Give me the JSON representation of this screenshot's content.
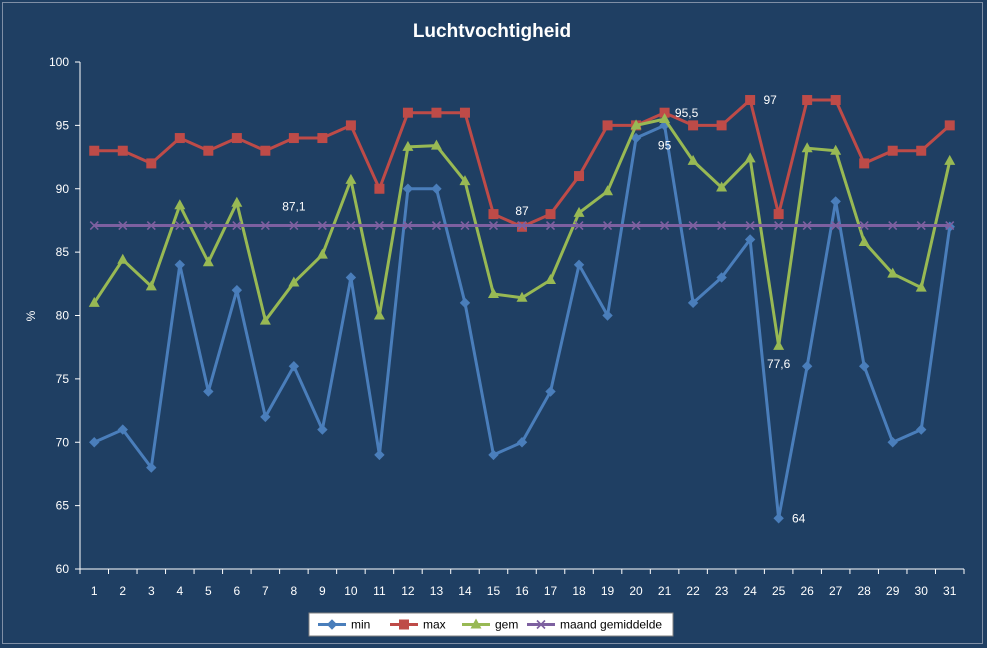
{
  "chart_data": {
    "type": "line",
    "title": "Luchtvochtigheid",
    "ylabel": "%",
    "xlabel": "",
    "ylim": [
      60,
      100
    ],
    "yticks": [
      60,
      65,
      70,
      75,
      80,
      85,
      90,
      95,
      100
    ],
    "categories": [
      "1",
      "2",
      "3",
      "4",
      "5",
      "6",
      "7",
      "8",
      "9",
      "10",
      "11",
      "12",
      "13",
      "14",
      "15",
      "16",
      "17",
      "18",
      "19",
      "20",
      "21",
      "22",
      "23",
      "24",
      "25",
      "26",
      "27",
      "28",
      "29",
      "30",
      "31"
    ],
    "grid": false,
    "legend_position": "bottom",
    "series": [
      {
        "name": "min",
        "color": "#4a7ebb",
        "marker": "diamond",
        "values": [
          70,
          71,
          68,
          84,
          74,
          82,
          72,
          76,
          71,
          83,
          69,
          90,
          90,
          81,
          69,
          70,
          74,
          84,
          80,
          94,
          95,
          81,
          83,
          86,
          64,
          76,
          89,
          76,
          70,
          71,
          87
        ]
      },
      {
        "name": "max",
        "color": "#be4b48",
        "marker": "square",
        "values": [
          93,
          93,
          92,
          94,
          93,
          94,
          93,
          94,
          94,
          95,
          90,
          96,
          96,
          96,
          88,
          87,
          88,
          91,
          95,
          95,
          96,
          95,
          95,
          97,
          88,
          97,
          97,
          92,
          93,
          93,
          95
        ]
      },
      {
        "name": "gem",
        "color": "#98b954",
        "marker": "triangle",
        "values": [
          81.0,
          84.4,
          82.3,
          88.7,
          84.2,
          88.9,
          79.6,
          82.6,
          84.8,
          90.7,
          80.0,
          93.3,
          93.4,
          90.6,
          81.7,
          81.4,
          82.8,
          88.1,
          89.8,
          95.0,
          95.5,
          92.2,
          90.1,
          92.4,
          77.6,
          93.2,
          93.0,
          85.8,
          83.3,
          82.2,
          92.2
        ]
      },
      {
        "name": "maand gemiddelde",
        "color": "#7d60a0",
        "marker": "x",
        "values": [
          87.1,
          87.1,
          87.1,
          87.1,
          87.1,
          87.1,
          87.1,
          87.1,
          87.1,
          87.1,
          87.1,
          87.1,
          87.1,
          87.1,
          87.1,
          87.1,
          87.1,
          87.1,
          87.1,
          87.1,
          87.1,
          87.1,
          87.1,
          87.1,
          87.1,
          87.1,
          87.1,
          87.1,
          87.1,
          87.1,
          87.1
        ]
      }
    ],
    "annotations": [
      {
        "text": "87,1",
        "series": "maand gemiddelde",
        "index": 7
      },
      {
        "text": "87",
        "series": "max",
        "index": 15
      },
      {
        "text": "95,5",
        "series": "gem",
        "index": 20
      },
      {
        "text": "95",
        "series": "min",
        "index": 20
      },
      {
        "text": "97",
        "series": "max",
        "index": 23
      },
      {
        "text": "77,6",
        "series": "gem",
        "index": 24
      },
      {
        "text": "64",
        "series": "min",
        "index": 24
      }
    ]
  }
}
